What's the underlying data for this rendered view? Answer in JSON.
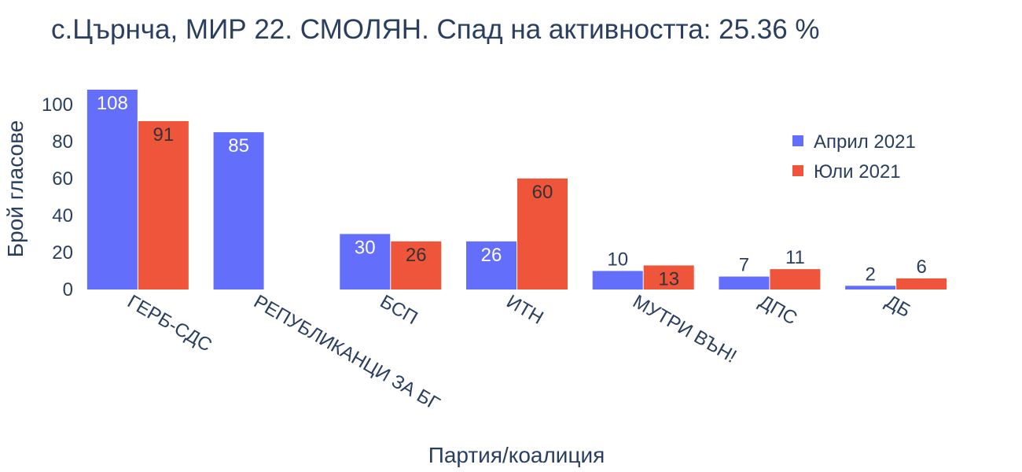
{
  "chart_data": {
    "type": "bar",
    "title": "с.Църнча, МИР 22. СМОЛЯН. Спад на активността: 25.36 %",
    "xlabel": "Партия/коалиция",
    "ylabel": "Брой гласове",
    "categories": [
      "ГЕРБ-СДС",
      "РЕПУБЛИКАНЦИ ЗА БГ",
      "БСП",
      "ИТН",
      "МУТРИ ВЪН!",
      "ДПС",
      "ДБ"
    ],
    "series": [
      {
        "name": "Април 2021",
        "color": "#636efa",
        "values": [
          108,
          85,
          30,
          26,
          10,
          7,
          2
        ],
        "labels": [
          "108",
          "85",
          "30",
          "26",
          "10",
          "7",
          "2"
        ]
      },
      {
        "name": "Юли 2021",
        "color": "#ef553b",
        "values": [
          91,
          0,
          26,
          60,
          13,
          11,
          6
        ],
        "labels": [
          "91",
          "",
          "26",
          "60",
          "13",
          "11",
          "6"
        ]
      }
    ],
    "ylim": [
      0,
      108
    ],
    "yticks": [
      "0",
      "20",
      "40",
      "60",
      "80",
      "100"
    ],
    "ytick_values": [
      0,
      20,
      40,
      60,
      80,
      100
    ],
    "grid": false,
    "legend_position": "top-right"
  }
}
